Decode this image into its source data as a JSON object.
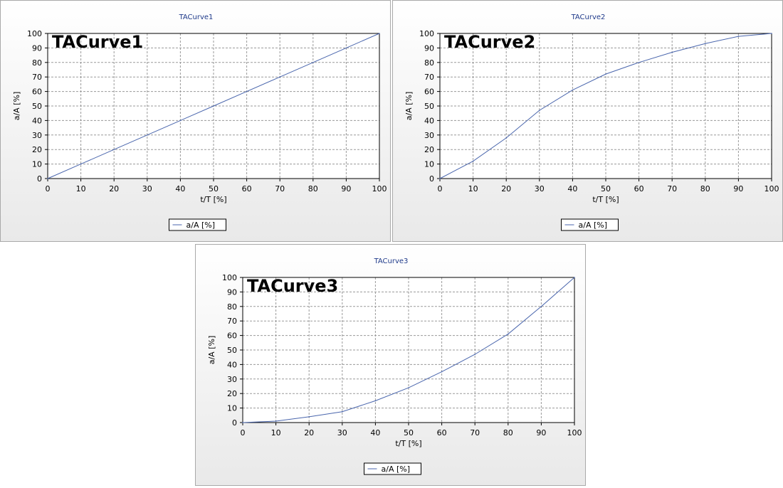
{
  "chart_data": [
    {
      "type": "line",
      "title": "TACurve1",
      "overlay_label": "TACurve1",
      "xlabel": "t/T [%]",
      "ylabel": "a/A [%]",
      "xlim": [
        0,
        100
      ],
      "ylim": [
        0,
        100
      ],
      "xticks": [
        "0",
        "10",
        "20",
        "30",
        "40",
        "50",
        "60",
        "70",
        "80",
        "90",
        "100"
      ],
      "yticks": [
        "0",
        "10",
        "20",
        "30",
        "40",
        "50",
        "60",
        "70",
        "80",
        "90",
        "100"
      ],
      "grid": true,
      "legend_position": "bottom-center",
      "line_color": "#4a66ad",
      "series": [
        {
          "name": "a/A  [%]",
          "x": [
            0,
            10,
            20,
            30,
            40,
            50,
            60,
            70,
            80,
            90,
            100
          ],
          "y": [
            0,
            10,
            20,
            30,
            40,
            50,
            60,
            70,
            80,
            90,
            100
          ]
        }
      ]
    },
    {
      "type": "line",
      "title": "TACurve2",
      "overlay_label": "TACurve2",
      "xlabel": "t/T [%]",
      "ylabel": "a/A [%]",
      "xlim": [
        0,
        100
      ],
      "ylim": [
        0,
        100
      ],
      "xticks": [
        "0",
        "10",
        "20",
        "30",
        "40",
        "50",
        "60",
        "70",
        "80",
        "90",
        "100"
      ],
      "yticks": [
        "0",
        "10",
        "20",
        "30",
        "40",
        "50",
        "60",
        "70",
        "80",
        "90",
        "100"
      ],
      "grid": true,
      "legend_position": "bottom-center",
      "line_color": "#4a66ad",
      "series": [
        {
          "name": "a/A  [%]",
          "x": [
            0,
            10,
            20,
            30,
            40,
            50,
            60,
            70,
            80,
            90,
            100
          ],
          "y": [
            0,
            12,
            28,
            47,
            61,
            72,
            80,
            87,
            93,
            98,
            100
          ]
        }
      ]
    },
    {
      "type": "line",
      "title": "TACurve3",
      "overlay_label": "TACurve3",
      "xlabel": "t/T [%]",
      "ylabel": "a/A [%]",
      "xlim": [
        0,
        100
      ],
      "ylim": [
        0,
        100
      ],
      "xticks": [
        "0",
        "10",
        "20",
        "30",
        "40",
        "50",
        "60",
        "70",
        "80",
        "90",
        "100"
      ],
      "yticks": [
        "0",
        "10",
        "20",
        "30",
        "40",
        "50",
        "60",
        "70",
        "80",
        "90",
        "100"
      ],
      "grid": true,
      "legend_position": "bottom-center",
      "line_color": "#4a66ad",
      "series": [
        {
          "name": "a/A  [%]",
          "x": [
            0,
            10,
            20,
            30,
            40,
            50,
            60,
            70,
            80,
            90,
            100
          ],
          "y": [
            0,
            1,
            4,
            7.5,
            15,
            24,
            35,
            47,
            61,
            80,
            100
          ]
        }
      ]
    }
  ]
}
